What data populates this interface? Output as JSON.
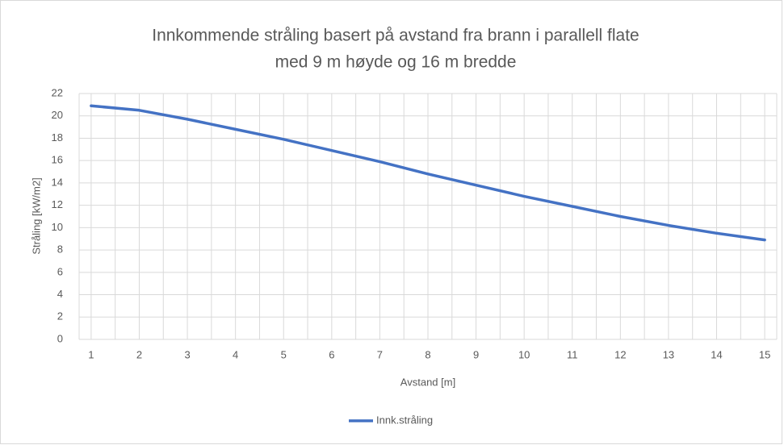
{
  "chart_data": {
    "type": "line",
    "title": [
      "Innkommende  stråling basert på avstand fra brann i parallell flate",
      "med 9 m høyde og 16 m bredde"
    ],
    "xlabel": "Avstand [m]",
    "ylabel": "Stråling [kW/m2]",
    "x": [
      1,
      2,
      3,
      4,
      5,
      6,
      7,
      8,
      9,
      10,
      11,
      12,
      13,
      14,
      15
    ],
    "series": [
      {
        "name": "Innk.stråling",
        "color": "#4472c4",
        "values": [
          20.9,
          20.5,
          19.7,
          18.8,
          17.9,
          16.9,
          15.9,
          14.8,
          13.8,
          12.8,
          11.9,
          11.0,
          10.2,
          9.5,
          8.9
        ]
      }
    ],
    "xlim": [
      0.75,
      15.25
    ],
    "xticks": [
      1,
      2,
      3,
      4,
      5,
      6,
      7,
      8,
      9,
      10,
      11,
      12,
      13,
      14,
      15
    ],
    "ylim": [
      0,
      22
    ],
    "yticks": [
      0,
      2,
      4,
      6,
      8,
      10,
      12,
      14,
      16,
      18,
      20,
      22
    ],
    "grid": true,
    "legend": "bottom"
  }
}
